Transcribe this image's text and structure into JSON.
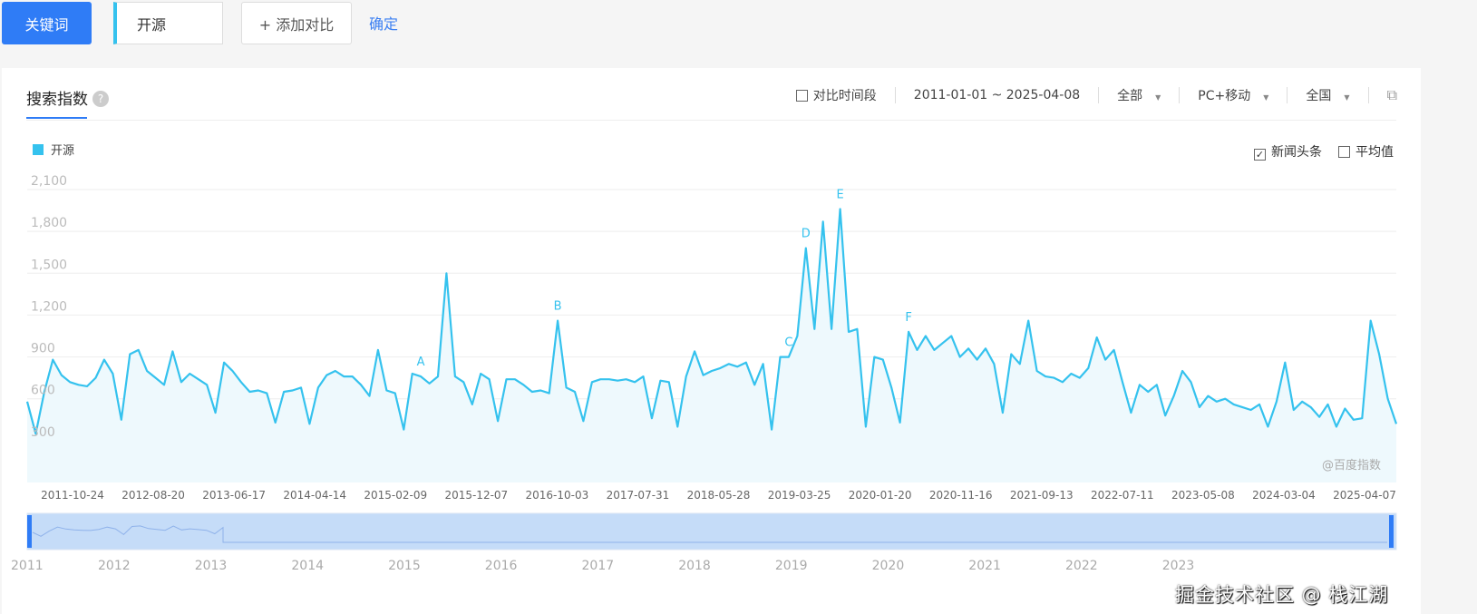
{
  "topbar": {
    "keyword_button": "关键词",
    "keyword_value": "开源",
    "add_compare": "+ 添加对比",
    "confirm": "确定"
  },
  "panel": {
    "title": "搜索指数",
    "help": "?",
    "compare_period": "对比时间段",
    "date_range": "2011-01-01 ~ 2025-04-08",
    "source": "全部",
    "device": "PC+移动",
    "region": "全国",
    "news_label": "新闻头条",
    "news_checked": true,
    "avg_label": "平均值",
    "avg_checked": false,
    "baidu_mark": "@百度指数"
  },
  "watermark": "掘金技术社区 @ 栈江湖",
  "colors": {
    "series": "#35c2ee",
    "accent": "#2f7cf6"
  },
  "chart_data": {
    "type": "area",
    "title": "搜索指数",
    "legend": [
      "开源"
    ],
    "ylim": [
      0,
      2100
    ],
    "yticks": [
      300,
      600,
      900,
      1200,
      1500,
      1800,
      2100
    ],
    "ytick_labels": [
      "300",
      "600",
      "900",
      "1,200",
      "1,500",
      "1,800",
      "2,100"
    ],
    "xtick_labels": [
      "2011-10-24",
      "2012-08-20",
      "2013-06-17",
      "2014-04-14",
      "2015-02-09",
      "2015-12-07",
      "2016-10-03",
      "2017-07-31",
      "2018-05-28",
      "2019-03-25",
      "2020-01-20",
      "2020-11-16",
      "2021-09-13",
      "2022-07-11",
      "2023-05-08",
      "2024-03-04",
      "2025-04-07"
    ],
    "series": [
      {
        "name": "开源",
        "values": [
          580,
          350,
          650,
          880,
          770,
          720,
          700,
          690,
          750,
          880,
          780,
          450,
          920,
          950,
          800,
          750,
          700,
          940,
          720,
          780,
          740,
          700,
          500,
          860,
          800,
          720,
          650,
          660,
          640,
          430,
          650,
          660,
          680,
          420,
          680,
          770,
          800,
          760,
          760,
          700,
          620,
          950,
          660,
          640,
          380,
          780,
          760,
          710,
          760,
          1500,
          760,
          720,
          560,
          780,
          740,
          440,
          740,
          740,
          700,
          650,
          660,
          640,
          1160,
          680,
          650,
          440,
          720,
          740,
          740,
          730,
          740,
          720,
          760,
          460,
          730,
          720,
          400,
          760,
          940,
          770,
          800,
          820,
          850,
          830,
          860,
          700,
          850,
          380,
          900,
          900,
          1050,
          1680,
          1100,
          1870,
          1100,
          1960,
          1080,
          1100,
          400,
          900,
          880,
          680,
          430,
          1080,
          950,
          1050,
          950,
          1000,
          1050,
          900,
          960,
          880,
          960,
          850,
          500,
          920,
          850,
          1160,
          800,
          760,
          750,
          720,
          780,
          750,
          820,
          1040,
          880,
          950,
          720,
          500,
          700,
          650,
          700,
          480,
          620,
          800,
          720,
          540,
          620,
          580,
          600,
          560,
          540,
          520,
          560,
          400,
          580,
          860,
          520,
          580,
          540,
          470,
          560,
          400,
          530,
          450,
          460,
          1160,
          920,
          600,
          420
        ]
      }
    ],
    "annotations": [
      {
        "label": "A",
        "index": 46
      },
      {
        "label": "B",
        "index": 62
      },
      {
        "label": "C",
        "index": 89
      },
      {
        "label": "D",
        "index": 91
      },
      {
        "label": "E",
        "index": 95
      },
      {
        "label": "F",
        "index": 103
      }
    ],
    "navigator_years": [
      "2011",
      "2012",
      "2013",
      "2014",
      "2015",
      "2016",
      "2017",
      "2018",
      "2019",
      "2020",
      "2021",
      "2022",
      "2023"
    ]
  }
}
